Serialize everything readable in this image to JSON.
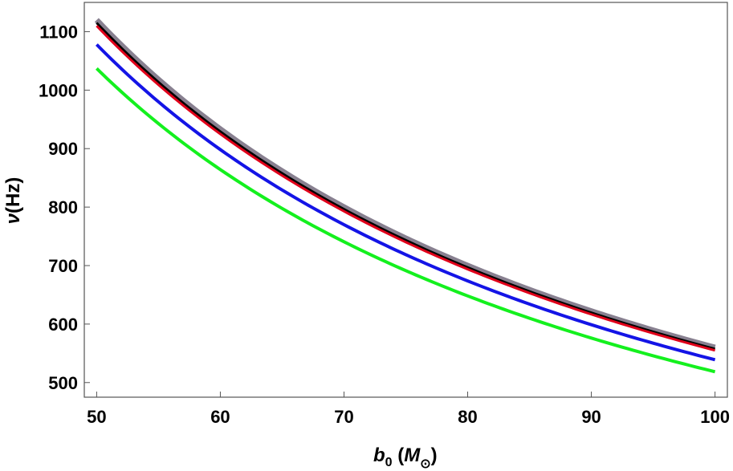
{
  "chart_data": {
    "type": "line",
    "xlabel": {
      "main": "b",
      "sub": "0",
      "unit_main": "M",
      "unit_sub": "⊙"
    },
    "ylabel": {
      "main": "ν",
      "unit": "(Hz)"
    },
    "xlim": [
      49,
      101
    ],
    "ylim": [
      475,
      1150
    ],
    "x_ticks": [
      50,
      60,
      70,
      80,
      90,
      100
    ],
    "y_ticks": [
      500,
      600,
      700,
      800,
      900,
      1000,
      1100
    ],
    "x_tick_labels": [
      "50",
      "60",
      "70",
      "80",
      "90",
      "100"
    ],
    "y_tick_labels": [
      "500",
      "600",
      "700",
      "800",
      "900",
      "1000",
      "1100"
    ],
    "grid": false,
    "series": [
      {
        "color": "#888090",
        "width": 7,
        "x": [
          50,
          100
        ],
        "y": [
          1120,
          560
        ],
        "curve": "inverse"
      },
      {
        "color": "#000000",
        "width": 3,
        "x": [
          50,
          100
        ],
        "y": [
          1115,
          557
        ],
        "curve": "inverse"
      },
      {
        "color": "#e0001a",
        "width": 3,
        "x": [
          50,
          100
        ],
        "y": [
          1110,
          555
        ],
        "curve": "inverse"
      },
      {
        "color": "#1414e6",
        "width": 4,
        "x": [
          50,
          100
        ],
        "y": [
          1078,
          539
        ],
        "curve": "inverse"
      },
      {
        "color": "#14f01e",
        "width": 4,
        "x": [
          50,
          100
        ],
        "y": [
          1037,
          519
        ],
        "curve": "inverse"
      }
    ]
  }
}
